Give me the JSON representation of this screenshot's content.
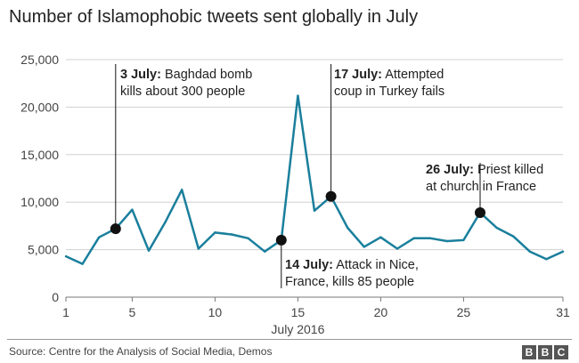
{
  "chart_data": {
    "type": "line",
    "title": "Number of Islamophobic tweets sent globally in July",
    "xlabel": "July 2016",
    "ylabel": "",
    "x": [
      1,
      2,
      3,
      4,
      5,
      6,
      7,
      8,
      9,
      10,
      11,
      12,
      13,
      14,
      15,
      16,
      17,
      18,
      19,
      20,
      21,
      22,
      23,
      24,
      25,
      26,
      27,
      28,
      29,
      30,
      31
    ],
    "values": [
      4300,
      3500,
      6300,
      7200,
      9200,
      4900,
      7900,
      11300,
      5100,
      6800,
      6600,
      6200,
      4800,
      6000,
      21200,
      9100,
      10600,
      7300,
      5300,
      6300,
      5100,
      6200,
      6200,
      5900,
      6000,
      8900,
      7300,
      6400,
      4800,
      4000,
      4800
    ],
    "xlim": [
      1,
      31
    ],
    "ylim": [
      0,
      25000
    ],
    "yticks": [
      0,
      5000,
      10000,
      15000,
      20000,
      25000
    ],
    "ytick_labels": [
      "0",
      "5,000",
      "10,000",
      "15,000",
      "20,000",
      "25,000"
    ],
    "xticks": [
      1,
      5,
      10,
      15,
      20,
      25,
      31
    ],
    "xtick_labels": [
      "1",
      "5",
      "10",
      "15",
      "20",
      "25",
      "31"
    ],
    "line_color": "#1a7f9c",
    "grid": true,
    "annotations": [
      {
        "day": 4,
        "value": 7200,
        "bold": "3 July:",
        "text1": " Baghdad bomb",
        "text2": "kills about 300 people"
      },
      {
        "day": 14,
        "value": 6000,
        "bold": "14 July:",
        "text1": " Attack in Nice,",
        "text2": "France, kills 85 people"
      },
      {
        "day": 17,
        "value": 10600,
        "bold": "17 July:",
        "text1": " Attempted",
        "text2": "coup in Turkey fails"
      },
      {
        "day": 26,
        "value": 8900,
        "bold": "26 July:",
        "text1": " Priest killed",
        "text2": "at church in France"
      }
    ]
  },
  "footer": {
    "source": "Source: Centre for the Analysis of Social Media, Demos",
    "logo": [
      "B",
      "B",
      "C"
    ]
  }
}
